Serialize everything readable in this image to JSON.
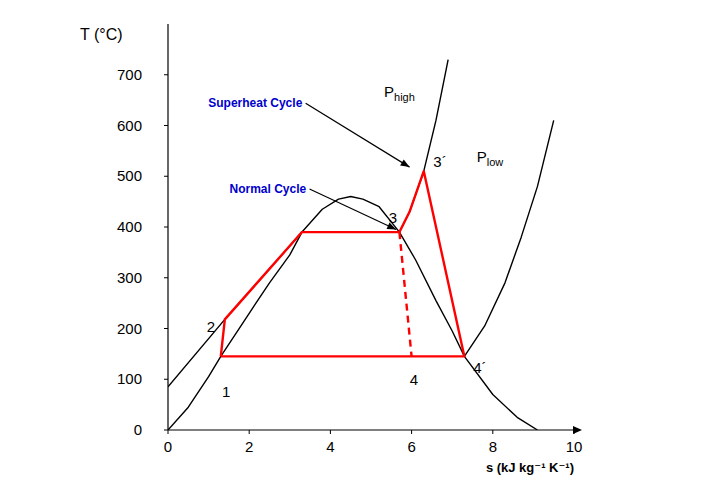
{
  "chart_data": {
    "type": "line",
    "x_label": "s (kJ kg⁻¹ K⁻¹)",
    "y_label": "T (°C)",
    "xlim": [
      0,
      10
    ],
    "ylim": [
      0,
      800
    ],
    "xticks": [
      0,
      2,
      4,
      6,
      8,
      10
    ],
    "yticks": [
      0,
      100,
      200,
      300,
      400,
      500,
      600,
      700
    ],
    "grid": false,
    "series": [
      {
        "color": "#000000",
        "line_style": "solid",
        "x": [
          0,
          0.5,
          1,
          1.3,
          2,
          2.5,
          3,
          3.3,
          3.8,
          4.2,
          4.5,
          4.8,
          5.2,
          5.7,
          6.1,
          6.6,
          7,
          7.3,
          8,
          8.6,
          9.1
        ],
        "values": [
          0,
          45,
          105,
          145,
          230,
          290,
          345,
          390,
          435,
          455,
          460,
          455,
          440,
          390,
          335,
          255,
          195,
          145,
          70,
          25,
          0
        ]
      },
      {
        "color": "#000000",
        "line_style": "solid",
        "x": [
          0,
          1.4,
          3.3,
          5.7,
          5.95,
          6.3,
          6.6,
          6.9
        ],
        "values": [
          85,
          218,
          390,
          390,
          430,
          510,
          610,
          730
        ]
      },
      {
        "color": "#000000",
        "line_style": "solid",
        "x": [
          7.3,
          7.8,
          8.3,
          8.7,
          9.1,
          9.5
        ],
        "values": [
          145,
          205,
          290,
          380,
          480,
          610
        ]
      },
      {
        "color": "#ff0000",
        "line_style": "solid",
        "x": [
          1.3,
          1.4,
          3.3,
          5.7,
          5.95,
          6.3,
          7.3,
          1.3
        ],
        "values": [
          145,
          218,
          390,
          390,
          430,
          510,
          145,
          145
        ]
      },
      {
        "color": "#ff0000",
        "line_style": "dashed",
        "x": [
          5.7,
          6.0
        ],
        "values": [
          390,
          145
        ]
      }
    ],
    "annotations": [
      {
        "text": "Superheat Cycle",
        "x": 2.15,
        "y": 646,
        "color": "#0000cc",
        "arrow_to": [
          5.95,
          518
        ]
      },
      {
        "text": "Normal Cycle",
        "x": 2.46,
        "y": 477,
        "color": "#0000cc",
        "arrow_to": [
          5.62,
          395
        ]
      },
      {
        "text": "P",
        "subscript": "high",
        "x": 5.7,
        "y": 666
      },
      {
        "text": "P",
        "subscript": "low",
        "x": 7.93,
        "y": 538
      },
      {
        "text": "1",
        "x": 1.43,
        "y": 75
      },
      {
        "text": "2",
        "x": 1.06,
        "y": 203
      },
      {
        "text": "3",
        "x": 5.54,
        "y": 418
      },
      {
        "text": "3´",
        "x": 6.7,
        "y": 528
      },
      {
        "text": "4",
        "x": 6.06,
        "y": 99
      },
      {
        "text": "4´",
        "x": 7.68,
        "y": 122
      }
    ]
  }
}
